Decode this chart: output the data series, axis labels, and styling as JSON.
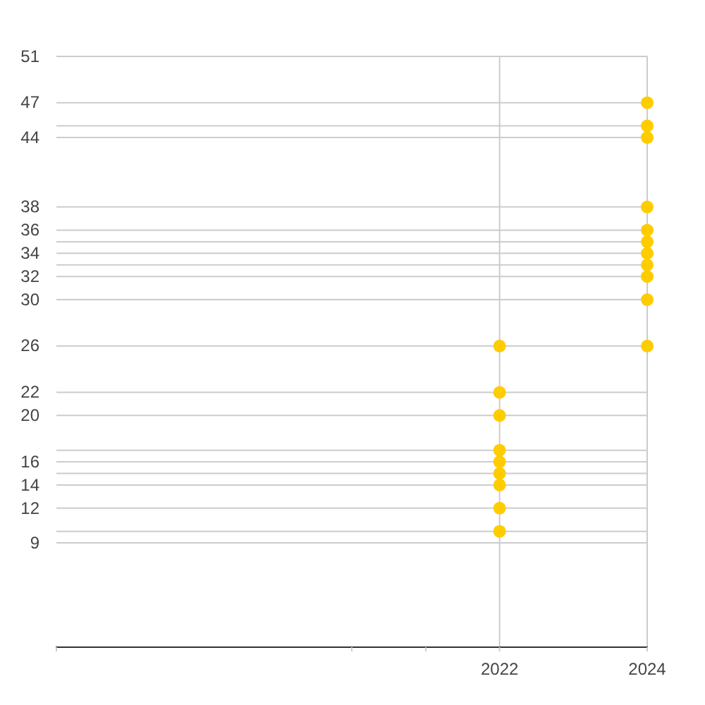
{
  "chart_data": {
    "type": "scatter",
    "series": [
      {
        "color": "#ffcc00",
        "x": [
          "2022",
          "2022",
          "2022",
          "2022",
          "2022",
          "2022",
          "2022",
          "2022",
          "2022",
          "2024",
          "2024",
          "2024",
          "2024",
          "2024",
          "2024",
          "2024",
          "2024",
          "2024",
          "2024",
          "2024"
        ],
        "values": [
          26,
          22,
          20,
          17,
          16,
          15,
          14,
          12,
          10,
          47,
          45,
          44,
          38,
          36,
          35,
          34,
          33,
          32,
          30,
          26
        ]
      }
    ],
    "xlim": [
      "2016",
      "2024"
    ],
    "xticks": [
      {
        "value": "2016",
        "label": null
      },
      {
        "value": "2020",
        "label": null
      },
      {
        "value": "2021",
        "label": null
      },
      "2022",
      "2024"
    ],
    "ylim": [
      0,
      51
    ],
    "yticks": [
      {
        "value": 10,
        "label": null
      },
      9,
      12,
      14,
      {
        "value": 15,
        "label": null
      },
      16,
      {
        "value": 17,
        "label": null
      },
      20,
      22,
      26,
      30,
      32,
      {
        "value": 33,
        "label": null
      },
      34,
      {
        "value": 35,
        "label": null
      },
      36,
      38,
      44,
      {
        "value": 45,
        "label": null
      },
      47,
      51
    ],
    "grid": true,
    "marker": "circle"
  }
}
